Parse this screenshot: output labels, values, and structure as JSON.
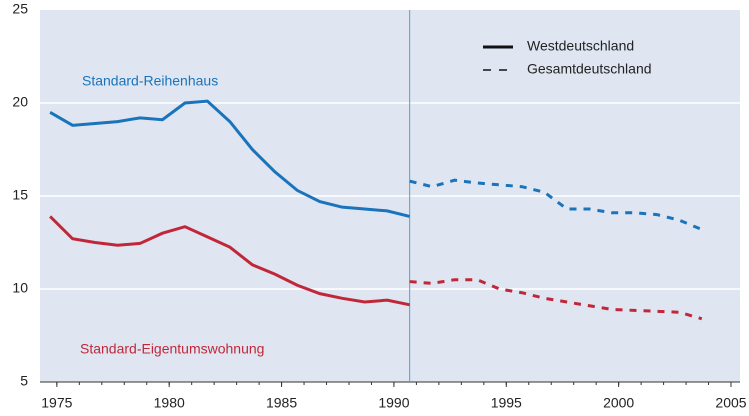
{
  "chart_data": {
    "type": "line",
    "x": [
      1974.7,
      1975.7,
      1976.7,
      1977.7,
      1978.7,
      1979.7,
      1980.7,
      1981.7,
      1982.7,
      1983.7,
      1984.7,
      1985.7,
      1986.7,
      1987.7,
      1988.7,
      1989.7,
      1990.7,
      1991.7,
      1992.7,
      1993.7,
      1994.7,
      1995.7,
      1996.7,
      1997.7,
      1998.7,
      1999.7,
      2000.7,
      2001.7,
      2002.7,
      2003.7
    ],
    "series": [
      {
        "name": "Standard-Reihenhaus",
        "color": "#1a74bb",
        "dash": "solid",
        "values": [
          19.5,
          18.8,
          18.9,
          19.0,
          19.2,
          19.1,
          20.0,
          20.1,
          19.0,
          17.5,
          16.3,
          15.3,
          14.7,
          14.4,
          14.3,
          14.2,
          13.9,
          null,
          null,
          null,
          null,
          null,
          null,
          null,
          null,
          null,
          null,
          null,
          null,
          null
        ]
      },
      {
        "name": "Standard-Reihenhaus",
        "color": "#1a74bb",
        "dash": "dashed",
        "values": [
          null,
          null,
          null,
          null,
          null,
          null,
          null,
          null,
          null,
          null,
          null,
          null,
          null,
          null,
          null,
          null,
          15.8,
          15.5,
          15.85,
          15.7,
          15.6,
          15.5,
          15.2,
          14.3,
          14.3,
          14.1,
          14.1,
          14.0,
          13.7,
          13.2
        ]
      },
      {
        "name": "Standard-Eigentumswohnung",
        "color": "#c0283a",
        "dash": "solid",
        "values": [
          13.9,
          12.7,
          12.5,
          12.35,
          12.45,
          13.0,
          13.35,
          12.8,
          12.25,
          11.3,
          10.8,
          10.2,
          9.75,
          9.5,
          9.3,
          9.4,
          9.15,
          null,
          null,
          null,
          null,
          null,
          null,
          null,
          null,
          null,
          null,
          null,
          null,
          null
        ]
      },
      {
        "name": "Standard-Eigentumswohnung",
        "color": "#c0283a",
        "dash": "dashed",
        "values": [
          null,
          null,
          null,
          null,
          null,
          null,
          null,
          null,
          null,
          null,
          null,
          null,
          null,
          null,
          null,
          null,
          10.4,
          10.3,
          10.5,
          10.5,
          10.0,
          9.8,
          9.5,
          9.3,
          9.1,
          8.9,
          8.85,
          8.8,
          8.75,
          8.4
        ]
      }
    ],
    "annotations": [
      "Standard-Reihenhaus",
      "Standard-Eigentumswohnung"
    ],
    "legend": [
      {
        "label": "Westdeutschland",
        "dash": "solid"
      },
      {
        "label": "Gesamtdeutschland",
        "dash": "dashed"
      }
    ],
    "divider_x": 1990.7,
    "xlim": [
      1974.25,
      2005.4
    ],
    "xticks": [
      1975,
      1980,
      1985,
      1990,
      1995,
      2000,
      2005
    ],
    "ylim": [
      5,
      25
    ],
    "yticks": [
      5,
      10,
      15,
      20,
      25
    ],
    "grid": true
  }
}
